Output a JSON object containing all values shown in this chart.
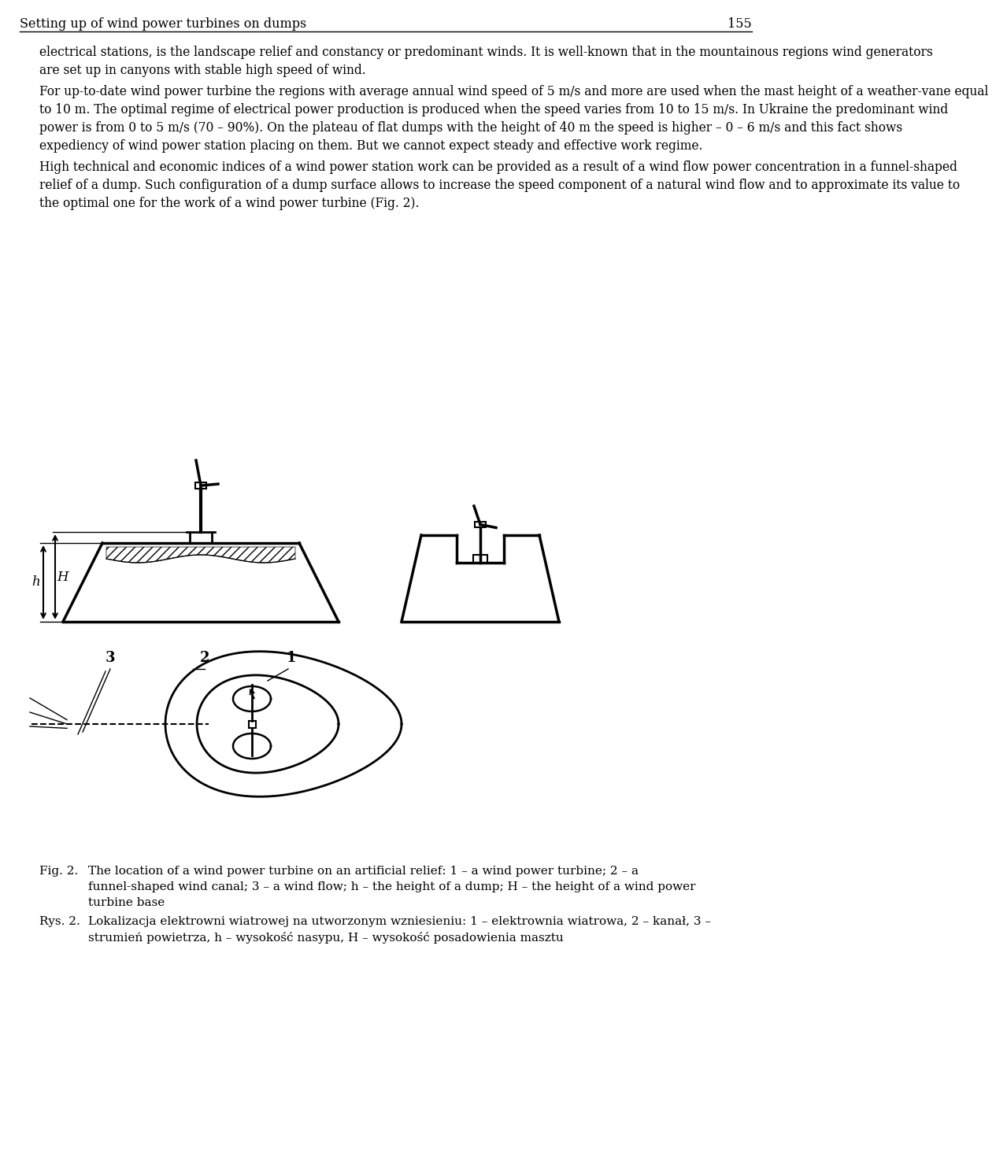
{
  "background_color": "#ffffff",
  "header_text": "Setting up of wind power turbines on dumps",
  "page_number": "155",
  "paragraph1": "electrical stations, is the landscape relief and constancy or predominant winds. It is well-known that in the mountainous regions wind generators are set up in canyons with stable high speed of wind.",
  "paragraph2": "For up-to-date wind power turbine the regions with average annual wind speed of 5 m/s and more are used when the mast height of a weather-vane equal to 10 m. The optimal regime of electrical power production is produced when the speed varies from 10 to 15 m/s. In Ukraine the predominant wind power is from 0 to 5 m/s (70 – 90%). On the plateau of flat dumps with the height of 40 m the speed is higher – 0 – 6 m/s and this fact shows expediency of wind power station placing on them. But we cannot expect steady and effective work regime.",
  "paragraph3": "High technical and economic indices of a wind power station work can be provided as a result of a wind flow power concentration in a funnel-shaped relief of a dump. Such configuration of a dump surface allows to increase the speed component of a natural wind flow and to approximate its value to the optimal one for the work of a wind power turbine (Fig. 2).",
  "fig_caption_en": "Fig. 2. The location of a wind power turbine on an artificial relief: 1 – a wind power turbine; 2 – a funnel-shaped wind canal; 3 – a wind flow; h – the height of a dump; H – the height of a wind power turbine base",
  "fig_caption_pl": "Rys. 2. Lokalizacja elektrowni wiatrowej na utworzonym wzniesieniu: 1 – elektrownia wiatrowa, 2 – kanał, 3 – strumień powietrza, h – wysokość nasypu, H – wysokość posadowienia masztu",
  "text_color": "#000000"
}
